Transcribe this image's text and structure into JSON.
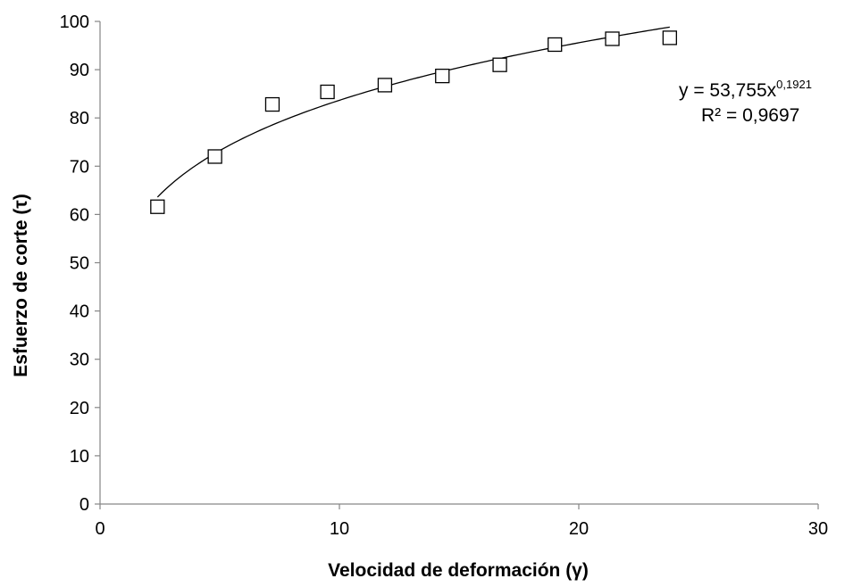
{
  "chart_data": {
    "type": "scatter",
    "title": "",
    "xlabel": "Velocidad de deformación (γ)",
    "ylabel": "Esfuerzo de corte (τ)",
    "xlim": [
      0,
      30
    ],
    "ylim": [
      0,
      100
    ],
    "x_ticks": [
      0,
      10,
      20,
      30
    ],
    "y_ticks": [
      0,
      10,
      20,
      30,
      40,
      50,
      60,
      70,
      80,
      90,
      100
    ],
    "grid": false,
    "legend": "none",
    "marker": "hollow-square",
    "series": [
      {
        "points": [
          {
            "x": 2.4,
            "y": 61.6
          },
          {
            "x": 4.8,
            "y": 72.0
          },
          {
            "x": 7.2,
            "y": 82.8
          },
          {
            "x": 9.5,
            "y": 85.4
          },
          {
            "x": 11.9,
            "y": 86.8
          },
          {
            "x": 14.3,
            "y": 88.7
          },
          {
            "x": 16.7,
            "y": 91.0
          },
          {
            "x": 19.0,
            "y": 95.2
          },
          {
            "x": 21.4,
            "y": 96.4
          },
          {
            "x": 23.8,
            "y": 96.6
          }
        ]
      }
    ],
    "trendline": {
      "type": "power",
      "a": 53.755,
      "b": 0.1921,
      "x_range": [
        2.4,
        23.8
      ]
    },
    "annotations": {
      "equation_prefix": "y = 53,755x",
      "equation_exponent": "0,1921",
      "r2": "R² = 0,9697"
    },
    "colors": {
      "axis": "#868686",
      "marker": "#000000",
      "trendline": "#000000"
    }
  }
}
